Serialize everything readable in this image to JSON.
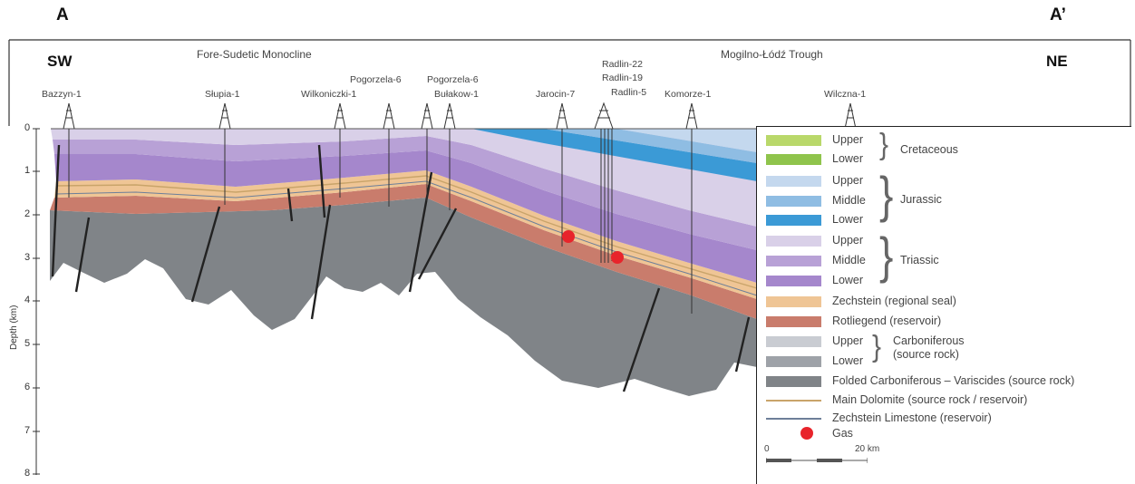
{
  "corners": {
    "left": "A",
    "right": "A’"
  },
  "directions": {
    "left": "SW",
    "right": "NE"
  },
  "regions": {
    "left": "Fore-Sudetic Monocline",
    "right": "Mogilno-Łódź Trough"
  },
  "wells": [
    {
      "name": "Bazzyn-1"
    },
    {
      "name": "Słupia-1"
    },
    {
      "name": "Wilkoniczki-1"
    },
    {
      "name": "Pogorzela-6"
    },
    {
      "name": "Pogorzela-6"
    },
    {
      "name": "Bułakow-1"
    },
    {
      "name": "Jarocin-7"
    },
    {
      "name": "Radlin-22"
    },
    {
      "name": "Radlin-19"
    },
    {
      "name": "Radlin-5"
    },
    {
      "name": "Komorze-1"
    },
    {
      "name": "Wilczna-1"
    }
  ],
  "depth_axis": {
    "label": "Depth (km)",
    "ticks": [
      "0",
      "1",
      "2",
      "3",
      "4",
      "5",
      "6",
      "7",
      "8"
    ]
  },
  "legend": {
    "rows": [
      {
        "label": "Upper",
        "color": "#b9d86a"
      },
      {
        "label": "Lower",
        "color": "#8fc44c"
      },
      {
        "label": "Upper",
        "color": "#c4d8ee"
      },
      {
        "label": "Middle",
        "color": "#8fbde3"
      },
      {
        "label": "Lower",
        "color": "#3b9ad6"
      },
      {
        "label": "Upper",
        "color": "#d9d0e8"
      },
      {
        "label": "Middle",
        "color": "#b8a1d6"
      },
      {
        "label": "Lower",
        "color": "#a587cc"
      },
      {
        "label": "Zechstein (regional seal)",
        "color": "#efc595"
      },
      {
        "label": "Rotliegend (reservoir)",
        "color": "#c97c6c"
      },
      {
        "label": "Upper",
        "color": "#c9ccd2"
      },
      {
        "label": "Lower",
        "color": "#9ea2a8"
      },
      {
        "label": "Folded Carboniferous – Variscides (source rock)",
        "color": "#808488"
      }
    ],
    "groups": {
      "cretaceous": "Cretaceous",
      "jurassic": "Jurassic",
      "triassic": "Triassic",
      "carboniferous_1": "Carboniferous",
      "carboniferous_2": "(source rock)"
    },
    "lines": [
      {
        "label": "Main Dolomite (source rock / reservoir)",
        "color": "#c9a46a"
      },
      {
        "label": "Zechstein Limestone (reservoir)",
        "color": "#6d7f99"
      }
    ],
    "gas": {
      "label": "Gas",
      "color": "#e8242b"
    },
    "scale": {
      "zero": "0",
      "end": "20 km"
    }
  },
  "colors": {
    "triassic_upper": "#d9d0e8",
    "triassic_middle": "#b8a1d6",
    "triassic_lower": "#a587cc",
    "jurassic_lower": "#3b9ad6",
    "jurassic_middle": "#8fbde3",
    "jurassic_upper": "#c4d8ee",
    "zechstein": "#efc595",
    "rotliegend": "#c97c6c",
    "basement": "#808488",
    "fault": "#222222",
    "gas": "#e8242b"
  }
}
